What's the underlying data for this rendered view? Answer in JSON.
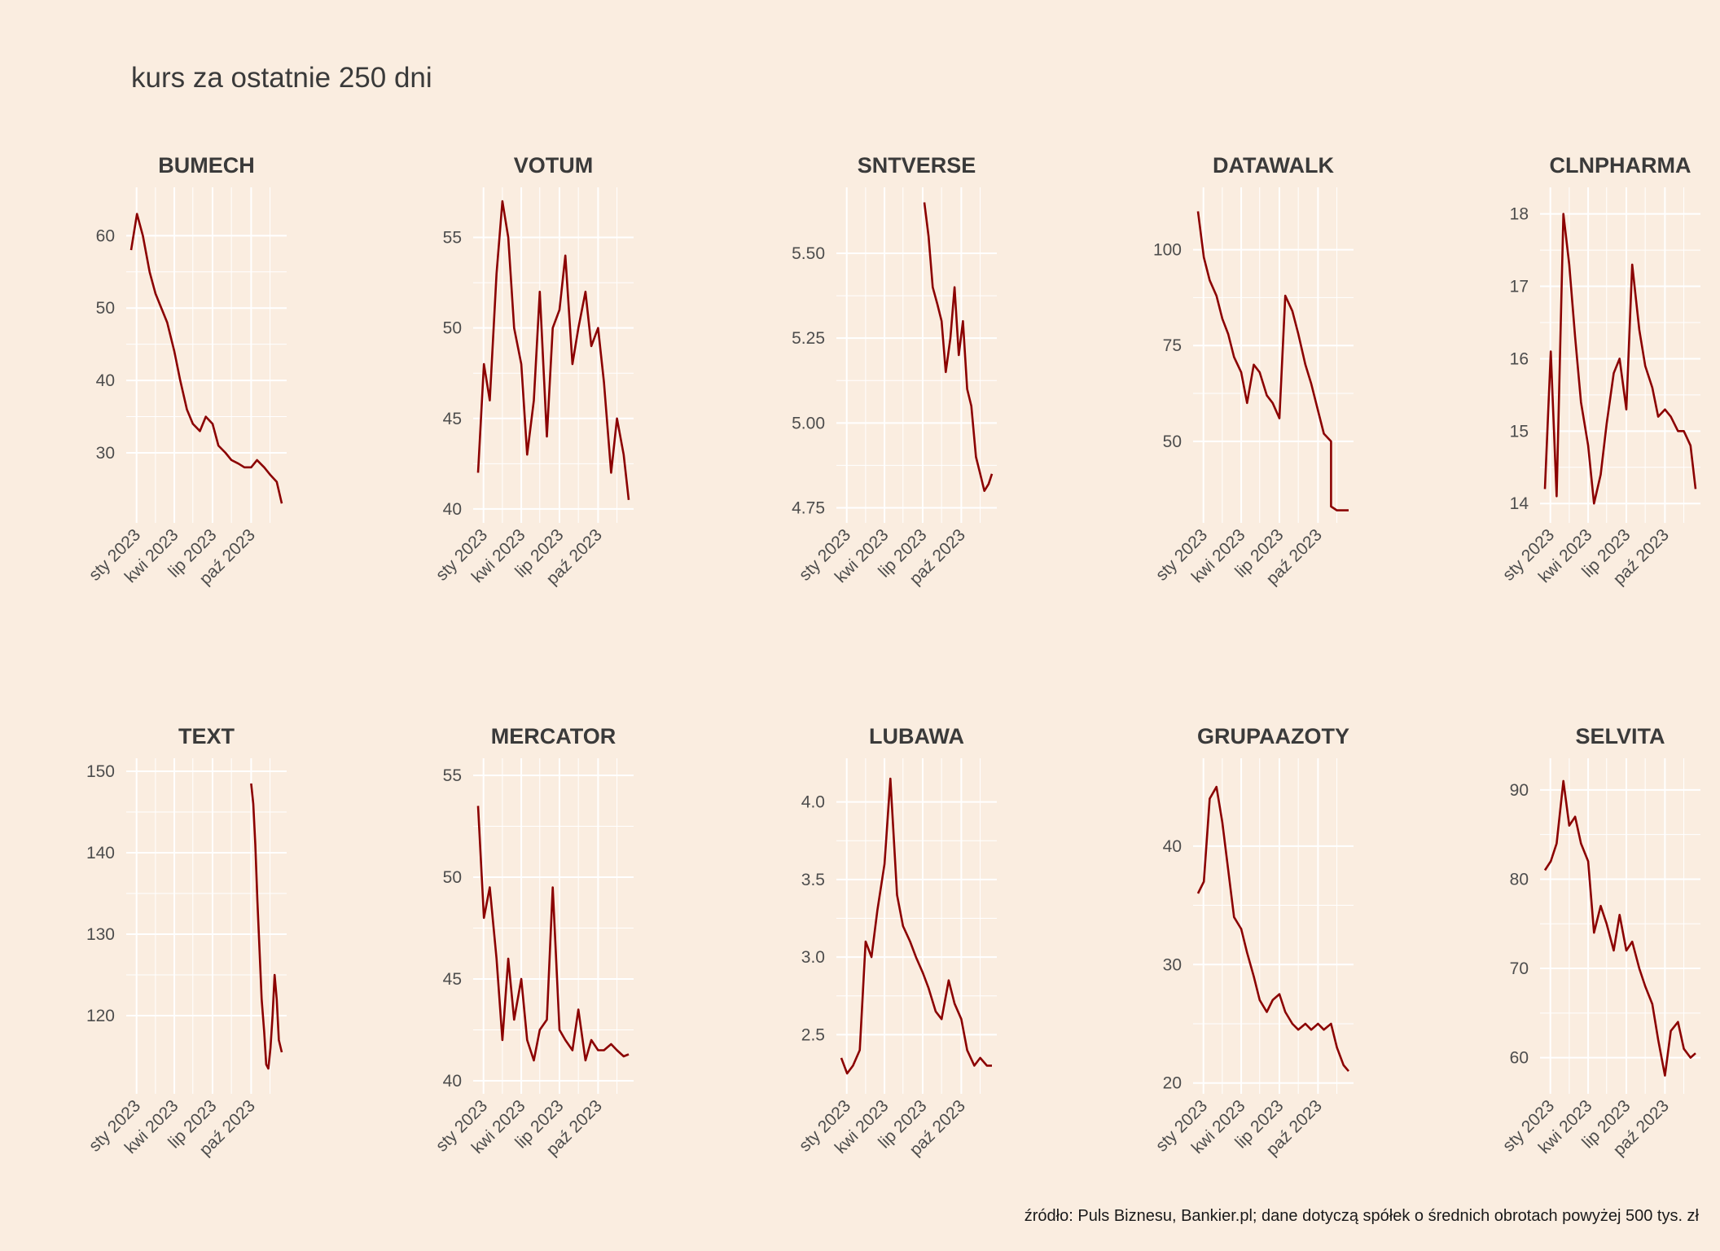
{
  "title": "kurs za ostatnie 250 dni",
  "caption": "źródło: Puls Biznesu, Bankier.pl; dane dotyczą spółek o średnich obrotach powyżej 500 tys. zł",
  "colors": {
    "background": "#faede0",
    "line": "#8b0000",
    "grid": "#ffffff",
    "text": "#3a3a3a"
  },
  "chart_data": [
    {
      "type": "line",
      "title": "BUMECH",
      "ylim": [
        21,
        66
      ],
      "yticks": [
        30,
        40,
        50,
        60
      ],
      "xlabels": [
        "sty 2023",
        "kwi 2023",
        "lip 2023",
        "paź 2023"
      ],
      "xrange": [
        "2022-12-19",
        "2023-12-13"
      ],
      "x": [
        "2022-12-19",
        "2023-01-02",
        "2023-01-16",
        "2023-02-01",
        "2023-02-15",
        "2023-03-01",
        "2023-03-15",
        "2023-04-01",
        "2023-04-15",
        "2023-05-01",
        "2023-05-15",
        "2023-06-01",
        "2023-06-15",
        "2023-07-01",
        "2023-07-15",
        "2023-08-01",
        "2023-08-15",
        "2023-09-01",
        "2023-09-15",
        "2023-10-01",
        "2023-10-15",
        "2023-11-01",
        "2023-11-15",
        "2023-12-01",
        "2023-12-13"
      ],
      "values": [
        58,
        63,
        60,
        55,
        52,
        50,
        48,
        44,
        40,
        36,
        34,
        33,
        35,
        34,
        31,
        30,
        29,
        28.5,
        28,
        28,
        29,
        28,
        27,
        26,
        23
      ]
    },
    {
      "type": "line",
      "title": "VOTUM",
      "ylim": [
        39.5,
        57.5
      ],
      "yticks": [
        40,
        45,
        50,
        55
      ],
      "xlabels": [
        "sty 2023",
        "kwi 2023",
        "lip 2023",
        "paź 2023"
      ],
      "xrange": [
        "2022-12-19",
        "2023-12-13"
      ],
      "x": [
        "2022-12-19",
        "2023-01-02",
        "2023-01-16",
        "2023-02-01",
        "2023-02-15",
        "2023-03-01",
        "2023-03-15",
        "2023-04-01",
        "2023-04-15",
        "2023-05-01",
        "2023-05-15",
        "2023-06-01",
        "2023-06-15",
        "2023-07-01",
        "2023-07-15",
        "2023-08-01",
        "2023-08-15",
        "2023-09-01",
        "2023-09-15",
        "2023-10-01",
        "2023-10-15",
        "2023-11-01",
        "2023-11-15",
        "2023-12-01",
        "2023-12-13"
      ],
      "values": [
        42,
        48,
        46,
        53,
        57,
        55,
        50,
        48,
        43,
        46,
        52,
        44,
        50,
        51,
        54,
        48,
        50,
        52,
        49,
        50,
        47,
        42,
        45,
        43,
        40.5
      ]
    },
    {
      "type": "line",
      "title": "SNTVERSE",
      "ylim": [
        4.72,
        5.68
      ],
      "yticks": [
        4.75,
        5.0,
        5.25,
        5.5
      ],
      "ytickfmt": "fixed2",
      "xlabels": [
        "sty 2023",
        "kwi 2023",
        "lip 2023",
        "paź 2023"
      ],
      "xrange": [
        "2022-12-19",
        "2023-12-13"
      ],
      "x": [
        "2023-07-05",
        "2023-07-15",
        "2023-07-25",
        "2023-08-05",
        "2023-08-15",
        "2023-08-25",
        "2023-09-05",
        "2023-09-15",
        "2023-09-25",
        "2023-10-05",
        "2023-10-15",
        "2023-10-25",
        "2023-11-05",
        "2023-11-15",
        "2023-11-25",
        "2023-12-05",
        "2023-12-13"
      ],
      "values": [
        5.65,
        5.55,
        5.4,
        5.35,
        5.3,
        5.15,
        5.25,
        5.4,
        5.2,
        5.3,
        5.1,
        5.05,
        4.9,
        4.85,
        4.8,
        4.82,
        4.85
      ]
    },
    {
      "type": "line",
      "title": "DATAWALK",
      "ylim": [
        30,
        115
      ],
      "yticks": [
        50,
        75,
        100
      ],
      "xlabels": [
        "sty 2023",
        "kwi 2023",
        "lip 2023",
        "paź 2023"
      ],
      "xrange": [
        "2022-12-19",
        "2023-12-13"
      ],
      "x": [
        "2022-12-19",
        "2023-01-02",
        "2023-01-16",
        "2023-02-01",
        "2023-02-15",
        "2023-03-01",
        "2023-03-15",
        "2023-04-01",
        "2023-04-15",
        "2023-05-01",
        "2023-05-15",
        "2023-06-01",
        "2023-06-15",
        "2023-07-01",
        "2023-07-15",
        "2023-08-01",
        "2023-08-15",
        "2023-09-01",
        "2023-09-15",
        "2023-10-01",
        "2023-10-15",
        "2023-11-01",
        "2023-11-01",
        "2023-11-15",
        "2023-12-01",
        "2023-12-13"
      ],
      "values": [
        110,
        98,
        92,
        88,
        82,
        78,
        72,
        68,
        60,
        70,
        68,
        62,
        60,
        56,
        88,
        84,
        78,
        70,
        65,
        58,
        52,
        50,
        33,
        32,
        32,
        32
      ]
    },
    {
      "type": "line",
      "title": "CLNPHARMA",
      "ylim": [
        13.8,
        18.3
      ],
      "yticks": [
        14,
        15,
        16,
        17,
        18
      ],
      "xlabels": [
        "sty 2023",
        "kwi 2023",
        "lip 2023",
        "paź 2023"
      ],
      "xrange": [
        "2022-12-19",
        "2023-12-13"
      ],
      "x": [
        "2022-12-19",
        "2023-01-02",
        "2023-01-16",
        "2023-02-01",
        "2023-02-15",
        "2023-03-01",
        "2023-03-15",
        "2023-04-01",
        "2023-04-15",
        "2023-05-01",
        "2023-05-15",
        "2023-06-01",
        "2023-06-15",
        "2023-07-01",
        "2023-07-15",
        "2023-08-01",
        "2023-08-15",
        "2023-09-01",
        "2023-09-15",
        "2023-10-01",
        "2023-10-15",
        "2023-11-01",
        "2023-11-15",
        "2023-12-01",
        "2023-12-13"
      ],
      "values": [
        14.2,
        16.1,
        14.1,
        18.0,
        17.3,
        16.3,
        15.4,
        14.8,
        14.0,
        14.4,
        15.1,
        15.8,
        16.0,
        15.3,
        17.3,
        16.4,
        15.9,
        15.6,
        15.2,
        15.3,
        15.2,
        15.0,
        15.0,
        14.8,
        14.2
      ]
    },
    {
      "type": "line",
      "title": "TEXT",
      "ylim": [
        111,
        151
      ],
      "yticks": [
        120,
        130,
        140,
        150
      ],
      "xlabels": [
        "sty 2023",
        "kwi 2023",
        "lip 2023",
        "paź 2023"
      ],
      "xrange": [
        "2022-12-19",
        "2023-12-13"
      ],
      "x": [
        "2023-10-01",
        "2023-10-06",
        "2023-10-11",
        "2023-10-16",
        "2023-10-21",
        "2023-10-26",
        "2023-11-01",
        "2023-11-06",
        "2023-11-11",
        "2023-11-16",
        "2023-11-21",
        "2023-11-26",
        "2023-12-01",
        "2023-12-06",
        "2023-12-13"
      ],
      "values": [
        148.5,
        146,
        141,
        134,
        128,
        122,
        118,
        114,
        113.5,
        116,
        120,
        125,
        122,
        117,
        115.5
      ]
    },
    {
      "type": "line",
      "title": "MERCATOR",
      "ylim": [
        39.6,
        55.6
      ],
      "yticks": [
        40,
        45,
        50,
        55
      ],
      "xlabels": [
        "sty 2023",
        "kwi 2023",
        "lip 2023",
        "paź 2023"
      ],
      "xrange": [
        "2022-12-19",
        "2023-12-13"
      ],
      "x": [
        "2022-12-19",
        "2023-01-02",
        "2023-01-16",
        "2023-02-01",
        "2023-02-15",
        "2023-03-01",
        "2023-03-15",
        "2023-04-01",
        "2023-04-15",
        "2023-05-01",
        "2023-05-15",
        "2023-06-01",
        "2023-06-15",
        "2023-07-01",
        "2023-07-15",
        "2023-08-01",
        "2023-08-15",
        "2023-09-01",
        "2023-09-15",
        "2023-10-01",
        "2023-10-15",
        "2023-11-01",
        "2023-11-15",
        "2023-12-01",
        "2023-12-13"
      ],
      "values": [
        53.5,
        48,
        49.5,
        46,
        42,
        46,
        43,
        45,
        42,
        41,
        42.5,
        43,
        49.5,
        42.5,
        42,
        41.5,
        43.5,
        41,
        42,
        41.5,
        41.5,
        41.8,
        41.5,
        41.2,
        41.3
      ]
    },
    {
      "type": "line",
      "title": "LUBAWA",
      "ylim": [
        2.15,
        4.25
      ],
      "yticks": [
        2.5,
        3.0,
        3.5,
        4.0
      ],
      "ytickfmt": "fixed1",
      "xlabels": [
        "sty 2023",
        "kwi 2023",
        "lip 2023",
        "paź 2023"
      ],
      "xrange": [
        "2022-12-19",
        "2023-12-13"
      ],
      "x": [
        "2022-12-19",
        "2023-01-02",
        "2023-01-16",
        "2023-02-01",
        "2023-02-15",
        "2023-03-01",
        "2023-03-15",
        "2023-04-01",
        "2023-04-15",
        "2023-05-01",
        "2023-05-15",
        "2023-06-01",
        "2023-06-15",
        "2023-07-01",
        "2023-07-15",
        "2023-08-01",
        "2023-08-15",
        "2023-09-01",
        "2023-09-15",
        "2023-10-01",
        "2023-10-15",
        "2023-11-01",
        "2023-11-15",
        "2023-12-01",
        "2023-12-13"
      ],
      "values": [
        2.35,
        2.25,
        2.3,
        2.4,
        3.1,
        3.0,
        3.3,
        3.6,
        4.15,
        3.4,
        3.2,
        3.1,
        3.0,
        2.9,
        2.8,
        2.65,
        2.6,
        2.85,
        2.7,
        2.6,
        2.4,
        2.3,
        2.35,
        2.3,
        2.3
      ]
    },
    {
      "type": "line",
      "title": "GRUPAAZOTY",
      "ylim": [
        19.5,
        47
      ],
      "yticks": [
        20,
        30,
        40
      ],
      "xlabels": [
        "sty 2023",
        "kwi 2023",
        "lip 2023",
        "paź 2023"
      ],
      "xrange": [
        "2022-12-19",
        "2023-12-13"
      ],
      "x": [
        "2022-12-19",
        "2023-01-02",
        "2023-01-16",
        "2023-02-01",
        "2023-02-15",
        "2023-03-01",
        "2023-03-15",
        "2023-04-01",
        "2023-04-15",
        "2023-05-01",
        "2023-05-15",
        "2023-06-01",
        "2023-06-15",
        "2023-07-01",
        "2023-07-15",
        "2023-08-01",
        "2023-08-15",
        "2023-09-01",
        "2023-09-15",
        "2023-10-01",
        "2023-10-15",
        "2023-11-01",
        "2023-11-15",
        "2023-12-01",
        "2023-12-13"
      ],
      "values": [
        36,
        37,
        44,
        45,
        42,
        38,
        34,
        33,
        31,
        29,
        27,
        26,
        27,
        27.5,
        26,
        25,
        24.5,
        25,
        24.5,
        25,
        24.5,
        25,
        23,
        21.5,
        21
      ]
    },
    {
      "type": "line",
      "title": "SELVITA",
      "ylim": [
        56.5,
        93
      ],
      "yticks": [
        60,
        70,
        80,
        90
      ],
      "xlabels": [
        "sty 2023",
        "kwi 2023",
        "lip 2023",
        "paź 2023"
      ],
      "xrange": [
        "2022-12-19",
        "2023-12-13"
      ],
      "x": [
        "2022-12-19",
        "2023-01-02",
        "2023-01-16",
        "2023-02-01",
        "2023-02-15",
        "2023-03-01",
        "2023-03-15",
        "2023-04-01",
        "2023-04-15",
        "2023-05-01",
        "2023-05-15",
        "2023-06-01",
        "2023-06-15",
        "2023-07-01",
        "2023-07-15",
        "2023-08-01",
        "2023-08-15",
        "2023-09-01",
        "2023-09-15",
        "2023-10-01",
        "2023-10-15",
        "2023-11-01",
        "2023-11-15",
        "2023-12-01",
        "2023-12-13"
      ],
      "values": [
        81,
        82,
        84,
        91,
        86,
        87,
        84,
        82,
        74,
        77,
        75,
        72,
        76,
        72,
        73,
        70,
        68,
        66,
        62,
        58,
        63,
        64,
        61,
        60,
        60.5
      ]
    }
  ]
}
